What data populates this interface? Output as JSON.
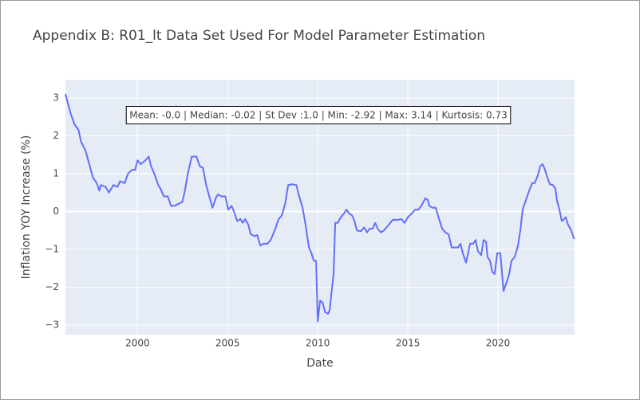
{
  "chart_data": {
    "type": "line",
    "title": "Appendix B: R01_lt Data Set Used For Model Parameter Estimation",
    "annotation": "Mean: -0.0 | Median: -0.02 | St Dev :1.0 | Min: -2.92 | Max: 3.14 | Kurtosis: 0.73",
    "xlabel": "Date",
    "ylabel": "Inflation YOY Increase (%)",
    "xlim": [
      1996,
      2024.25
    ],
    "ylim": [
      -3.25,
      3.48
    ],
    "xticks": [
      2000,
      2005,
      2010,
      2015,
      2020
    ],
    "yticks": [
      {
        "value": -3,
        "label": "−3"
      },
      {
        "value": -2,
        "label": "−2"
      },
      {
        "value": -1,
        "label": "−1"
      },
      0,
      1,
      2,
      3
    ],
    "grid": true,
    "background": "#e5ecf6",
    "x": [
      1996.0,
      1996.28,
      1996.5,
      1996.73,
      1996.86,
      1997.12,
      1997.35,
      1997.52,
      1997.74,
      1997.88,
      1997.96,
      1998.23,
      1998.41,
      1998.67,
      1998.89,
      1999.03,
      1999.29,
      1999.47,
      1999.69,
      1999.87,
      2000.0,
      2000.18,
      2000.44,
      2000.62,
      2000.75,
      2000.93,
      2001.15,
      2001.28,
      2001.46,
      2001.68,
      2001.86,
      2002.04,
      2002.26,
      2002.48,
      2002.61,
      2002.79,
      2003.01,
      2003.27,
      2003.45,
      2003.63,
      2003.81,
      2003.98,
      2004.16,
      2004.34,
      2004.47,
      2004.65,
      2004.87,
      2005.04,
      2005.22,
      2005.35,
      2005.53,
      2005.71,
      2005.84,
      2005.97,
      2006.15,
      2006.28,
      2006.5,
      2006.64,
      2006.81,
      2006.99,
      2007.21,
      2007.39,
      2007.61,
      2007.83,
      2008.01,
      2008.19,
      2008.36,
      2008.58,
      2008.81,
      2008.94,
      2009.16,
      2009.34,
      2009.51,
      2009.65,
      2009.78,
      2009.91,
      2010.0,
      2010.13,
      2010.27,
      2010.4,
      2010.58,
      2010.66,
      2010.75,
      2010.88,
      2010.97,
      2011.11,
      2011.28,
      2011.46,
      2011.59,
      2011.73,
      2011.9,
      2012.04,
      2012.17,
      2012.39,
      2012.57,
      2012.74,
      2012.88,
      2013.05,
      2013.19,
      2013.32,
      2013.5,
      2013.67,
      2013.94,
      2014.16,
      2014.42,
      2014.65,
      2014.82,
      2015.0,
      2015.22,
      2015.4,
      2015.58,
      2015.75,
      2015.97,
      2016.11,
      2016.19,
      2016.37,
      2016.55,
      2016.73,
      2016.9,
      2017.08,
      2017.26,
      2017.43,
      2017.61,
      2017.79,
      2017.92,
      2018.05,
      2018.23,
      2018.36,
      2018.45,
      2018.63,
      2018.76,
      2018.89,
      2019.07,
      2019.2,
      2019.34,
      2019.42,
      2019.56,
      2019.69,
      2019.82,
      2019.96,
      2020.13,
      2020.31,
      2020.49,
      2020.62,
      2020.75,
      2020.93,
      2021.11,
      2021.24,
      2021.37,
      2021.55,
      2021.73,
      2021.9,
      2022.04,
      2022.21,
      2022.35,
      2022.48,
      2022.61,
      2022.74,
      2022.88,
      2023.05,
      2023.19,
      2023.27,
      2023.41,
      2023.54,
      2023.67,
      2023.76,
      2023.89,
      2024.07,
      2024.2,
      2024.25
    ],
    "series": [
      {
        "name": "R01_lt",
        "color": "#636efa",
        "values": [
          3.1,
          2.6,
          2.3,
          2.15,
          1.85,
          1.6,
          1.2,
          0.9,
          0.75,
          0.55,
          0.7,
          0.65,
          0.5,
          0.7,
          0.65,
          0.8,
          0.75,
          1.0,
          1.1,
          1.1,
          1.35,
          1.25,
          1.35,
          1.45,
          1.2,
          1.0,
          0.7,
          0.6,
          0.4,
          0.4,
          0.15,
          0.15,
          0.2,
          0.25,
          0.5,
          1.0,
          1.45,
          1.45,
          1.2,
          1.15,
          0.7,
          0.4,
          0.1,
          0.35,
          0.45,
          0.4,
          0.4,
          0.05,
          0.15,
          0.0,
          -0.25,
          -0.2,
          -0.3,
          -0.2,
          -0.35,
          -0.6,
          -0.65,
          -0.62,
          -0.9,
          -0.85,
          -0.85,
          -0.75,
          -0.5,
          -0.2,
          -0.1,
          0.2,
          0.7,
          0.72,
          0.7,
          0.45,
          0.1,
          -0.4,
          -0.95,
          -1.1,
          -1.3,
          -1.3,
          -2.9,
          -2.35,
          -2.4,
          -2.65,
          -2.7,
          -2.6,
          -2.2,
          -1.65,
          -0.3,
          -0.3,
          -0.15,
          -0.05,
          0.05,
          -0.05,
          -0.1,
          -0.25,
          -0.5,
          -0.52,
          -0.42,
          -0.55,
          -0.45,
          -0.45,
          -0.3,
          -0.45,
          -0.55,
          -0.5,
          -0.35,
          -0.22,
          -0.22,
          -0.2,
          -0.3,
          -0.15,
          -0.05,
          0.05,
          0.05,
          0.15,
          0.35,
          0.3,
          0.15,
          0.1,
          0.1,
          -0.2,
          -0.45,
          -0.55,
          -0.6,
          -0.95,
          -0.95,
          -0.95,
          -0.85,
          -1.1,
          -1.35,
          -1.05,
          -0.85,
          -0.85,
          -0.75,
          -1.05,
          -1.15,
          -0.75,
          -0.8,
          -1.2,
          -1.3,
          -1.6,
          -1.65,
          -1.1,
          -1.1,
          -2.1,
          -1.85,
          -1.65,
          -1.3,
          -1.2,
          -0.9,
          -0.5,
          0.05,
          0.3,
          0.55,
          0.75,
          0.75,
          0.95,
          1.2,
          1.25,
          1.1,
          0.9,
          0.72,
          0.7,
          0.6,
          0.3,
          0.05,
          -0.25,
          -0.2,
          -0.15,
          -0.35,
          -0.5,
          -0.7,
          -0.72
        ]
      }
    ]
  }
}
